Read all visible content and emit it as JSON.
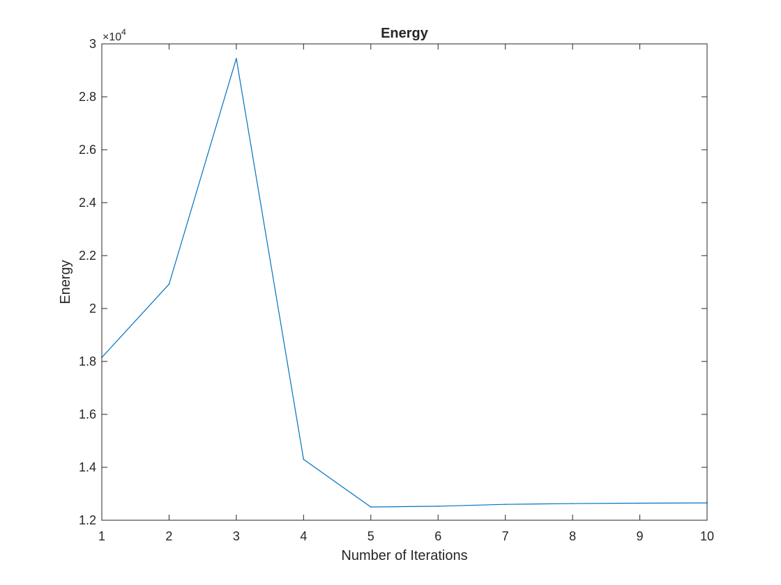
{
  "chart_data": {
    "type": "line",
    "title": "Energy",
    "xlabel": "Number of Iterations",
    "ylabel": "Energy",
    "y_exponent_base": "×10",
    "y_exponent_power": "4",
    "xlim": [
      1,
      10
    ],
    "ylim": [
      1.2,
      3.0
    ],
    "x_ticks": [
      1,
      2,
      3,
      4,
      5,
      6,
      7,
      8,
      9,
      10
    ],
    "y_ticks": [
      1.2,
      1.4,
      1.6,
      1.8,
      2,
      2.2,
      2.4,
      2.6,
      2.8,
      3
    ],
    "y_tick_labels": [
      "1.2",
      "1.4",
      "1.6",
      "1.8",
      "2",
      "2.2",
      "2.4",
      "2.6",
      "2.8",
      "3"
    ],
    "grid": false,
    "series": [
      {
        "color": "#0072BD",
        "x": [
          1,
          2,
          3,
          4,
          5,
          6,
          7,
          8,
          9,
          10
        ],
        "y": [
          18150,
          20920,
          29450,
          14300,
          12500,
          12530,
          12600,
          12630,
          12645,
          12655
        ]
      }
    ]
  }
}
